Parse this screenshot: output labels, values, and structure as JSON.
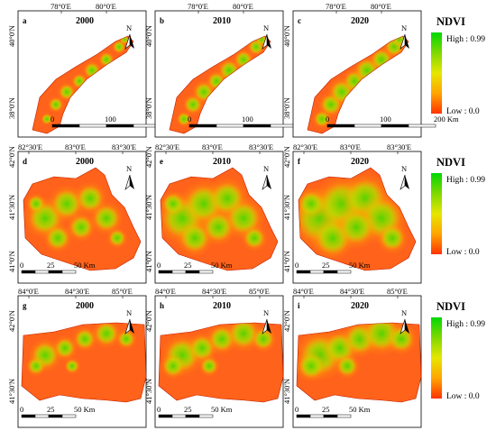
{
  "legend": {
    "title": "NDVI",
    "high_label": "High : 0.99",
    "low_label": "Low : 0.0",
    "colors": [
      "#00d800",
      "#7fd800",
      "#e6e600",
      "#ffa500",
      "#ff3300"
    ]
  },
  "north_label": "N",
  "rows": [
    {
      "lon_ticks": [
        "78°0'E",
        "80°0'E"
      ],
      "lat_ticks": [
        "40°0'N",
        "38°0'N"
      ],
      "scale": [
        "0",
        "100",
        "200 Km"
      ],
      "panels": [
        {
          "letter": "a",
          "year": "2000"
        },
        {
          "letter": "b",
          "year": "2010"
        },
        {
          "letter": "c",
          "year": "2020"
        }
      ]
    },
    {
      "lon_ticks": [
        "82°30'E",
        "83°0'E",
        "83°30'E"
      ],
      "lat_ticks": [
        "42°0'N",
        "41°30'N",
        "41°0'N"
      ],
      "scale": [
        "0",
        "25",
        "50 Km"
      ],
      "panels": [
        {
          "letter": "d",
          "year": "2000"
        },
        {
          "letter": "e",
          "year": "2010"
        },
        {
          "letter": "f",
          "year": "2020"
        }
      ]
    },
    {
      "lon_ticks": [
        "84°0'E",
        "84°30'E",
        "85°0'E"
      ],
      "lat_ticks": [
        "42°0'N",
        "41°30'N"
      ],
      "scale": [
        "0",
        "25",
        "50 Km"
      ],
      "panels": [
        {
          "letter": "g",
          "year": "2000"
        },
        {
          "letter": "h",
          "year": "2010"
        },
        {
          "letter": "i",
          "year": "2020"
        }
      ]
    }
  ]
}
